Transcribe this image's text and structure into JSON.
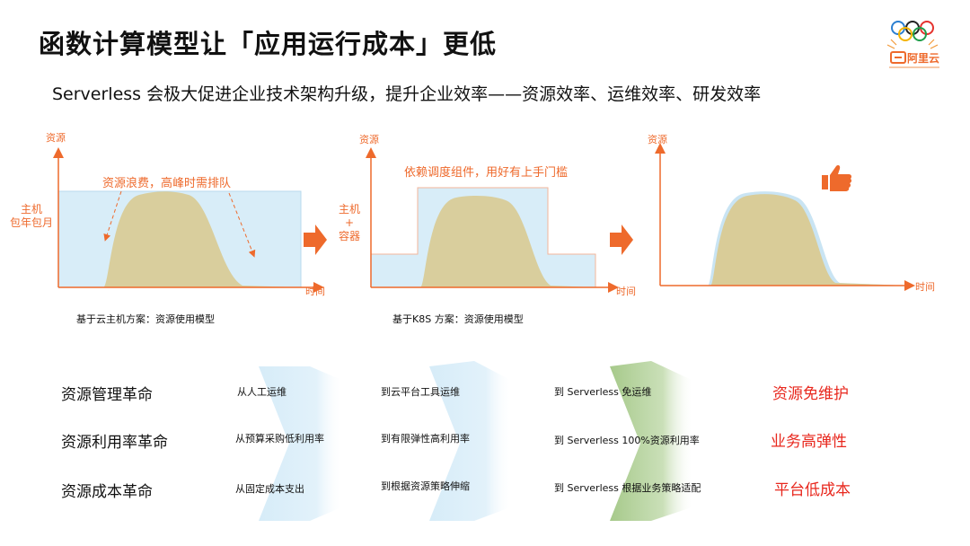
{
  "title": "函数计算模型让「应用运行成本」更低",
  "subtitle": "Serverless 会极大促进企业技术架构升级，提升企业效率——资源效率、运维效率、研发效率",
  "logo": {
    "text": "阿里云",
    "icon": "olympic-rings-icon"
  },
  "colors": {
    "accent": "#ee6a2c",
    "red": "#e8281e",
    "resource_fill": "#d8edf8",
    "usage_fill": "#d9cc98",
    "arrow_blue": "#d6ecf8",
    "arrow_green": "#a6c98a"
  },
  "panels": [
    {
      "ylabel": "资源",
      "xlabel": "时间",
      "side_label": "主机\n包年包月",
      "annotation": "资源浪费，高峰时需排队",
      "caption": "基于云主机方案：资源使用模型"
    },
    {
      "ylabel": "资源",
      "xlabel": "时间",
      "side_label": "主机\n+\n容器",
      "annotation": "依赖调度组件，用好有上手门槛",
      "caption": "基于K8S 方案：资源使用模型"
    },
    {
      "ylabel": "资源",
      "xlabel": "时间",
      "icon": "thumbs-up-icon"
    }
  ],
  "revolutions": [
    {
      "label": "资源管理革命",
      "steps": [
        "从人工运维",
        "到云平台工具运维",
        "到 Serverless 免运维"
      ],
      "result": "资源免维护"
    },
    {
      "label": "资源利用率革命",
      "steps": [
        "从预算采购低利用率",
        "到有限弹性高利用率",
        "到 Serverless 100%资源利用率"
      ],
      "result": "业务高弹性"
    },
    {
      "label": "资源成本革命",
      "steps": [
        "从固定成本支出",
        "到根据资源策略伸缩",
        "到 Serverless 根据业务策略适配"
      ],
      "result": "平台低成本"
    }
  ]
}
